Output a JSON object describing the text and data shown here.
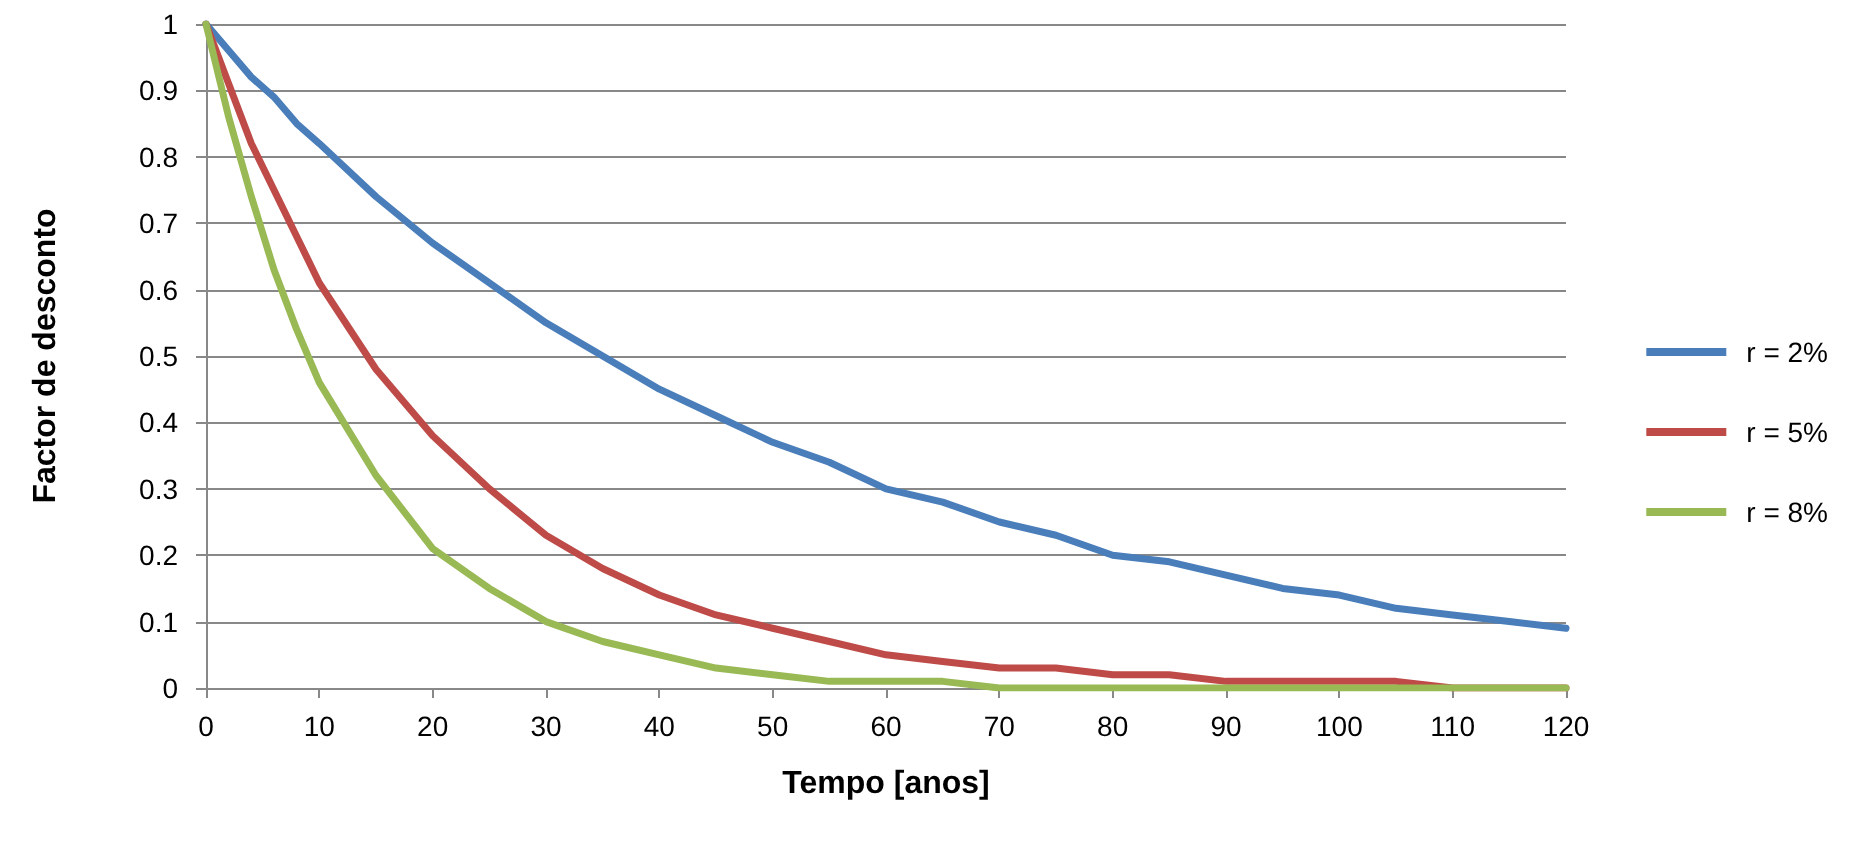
{
  "chart_data": {
    "type": "line",
    "xlabel": "Tempo [anos]",
    "ylabel": "Factor de desconto",
    "x": [
      0,
      2,
      4,
      6,
      8,
      10,
      15,
      20,
      25,
      30,
      35,
      40,
      45,
      50,
      55,
      60,
      65,
      70,
      75,
      80,
      85,
      90,
      95,
      100,
      105,
      110,
      115,
      120
    ],
    "series": [
      {
        "name": "r = 2%",
        "color": "#4a7ebb",
        "values": [
          1,
          0.96,
          0.92,
          0.89,
          0.85,
          0.82,
          0.74,
          0.67,
          0.61,
          0.55,
          0.5,
          0.45,
          0.41,
          0.37,
          0.34,
          0.3,
          0.28,
          0.25,
          0.23,
          0.2,
          0.19,
          0.17,
          0.15,
          0.14,
          0.12,
          0.11,
          0.1,
          0.09
        ]
      },
      {
        "name": "r = 5%",
        "color": "#be4b48",
        "values": [
          1,
          0.91,
          0.82,
          0.75,
          0.68,
          0.61,
          0.48,
          0.38,
          0.3,
          0.23,
          0.18,
          0.14,
          0.11,
          0.09,
          0.07,
          0.05,
          0.04,
          0.03,
          0.03,
          0.02,
          0.02,
          0.01,
          0.01,
          0.01,
          0.01,
          0,
          0,
          0
        ]
      },
      {
        "name": "r = 8%",
        "color": "#98b954",
        "values": [
          1,
          0.86,
          0.74,
          0.63,
          0.54,
          0.46,
          0.32,
          0.21,
          0.15,
          0.1,
          0.07,
          0.05,
          0.03,
          0.02,
          0.01,
          0.01,
          0.01,
          0,
          0,
          0,
          0,
          0,
          0,
          0,
          0,
          0,
          0,
          0
        ]
      }
    ],
    "xlim": [
      0,
      120
    ],
    "xticks": [
      0,
      10,
      20,
      30,
      40,
      50,
      60,
      70,
      80,
      90,
      100,
      110,
      120
    ],
    "ylim": [
      0,
      1
    ],
    "yticks": [
      0,
      0.1,
      0.2,
      0.3,
      0.4,
      0.5,
      0.6,
      0.7,
      0.8,
      0.9,
      1
    ],
    "grid": "y",
    "legend": "right",
    "marker": "none",
    "line_style": "solid"
  }
}
